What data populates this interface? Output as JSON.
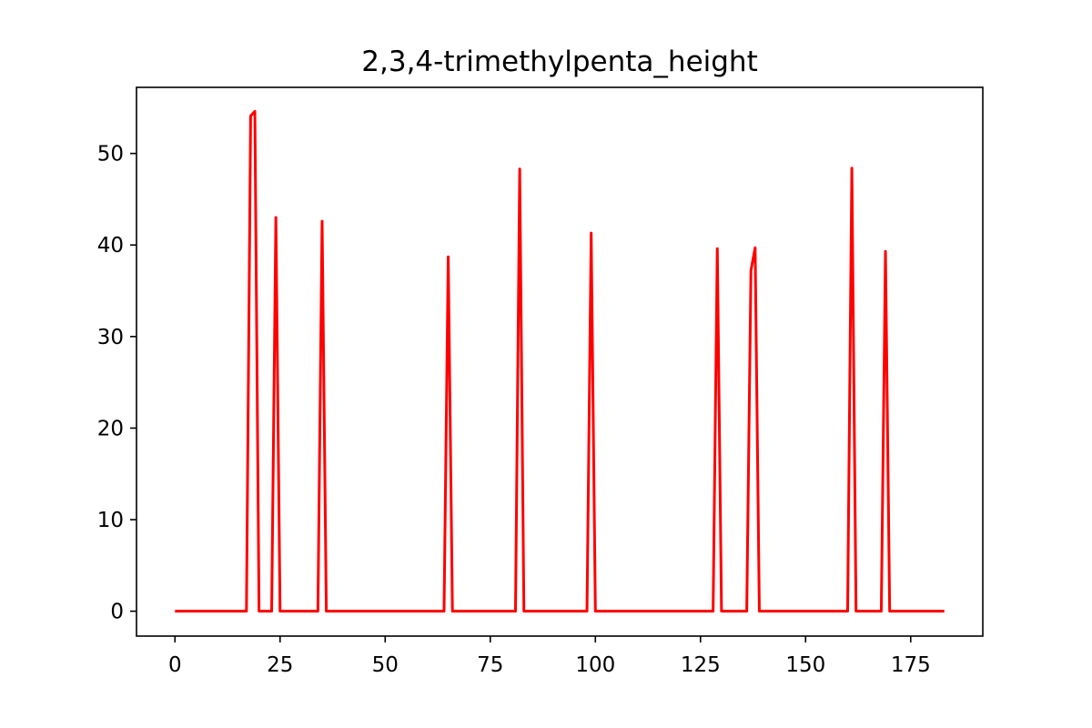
{
  "chart_data": {
    "type": "line",
    "title": "2,3,4-trimethylpenta_height",
    "xlabel": "",
    "ylabel": "",
    "xlim": [
      -9.15,
      192.15
    ],
    "ylim": [
      -2.72,
      57.22
    ],
    "x_ticks": [
      0,
      25,
      50,
      75,
      100,
      125,
      150,
      175
    ],
    "x_tick_labels": [
      "0",
      "25",
      "50",
      "75",
      "100",
      "125",
      "150",
      "175"
    ],
    "y_ticks": [
      0,
      10,
      20,
      30,
      40,
      50
    ],
    "y_tick_labels": [
      "0",
      "10",
      "20",
      "30",
      "40",
      "50"
    ],
    "grid": false,
    "legend": "none",
    "colors": {
      "line": "#ff0000",
      "axes": "#000000",
      "background": "#ffffff"
    },
    "series": [
      {
        "x": [
          0,
          17,
          18,
          19,
          20,
          23,
          24,
          25,
          34,
          35,
          36,
          64,
          65,
          66,
          81,
          82,
          83,
          98,
          99,
          100,
          128,
          129,
          130,
          136,
          137,
          138,
          139,
          160,
          161,
          162,
          168,
          169,
          170,
          183
        ],
        "y": [
          0,
          0,
          54.1,
          54.6,
          0,
          0,
          43.0,
          0,
          0,
          42.6,
          0,
          0,
          38.7,
          0,
          0,
          48.3,
          0,
          0,
          41.3,
          0,
          0,
          39.6,
          0,
          0,
          37.2,
          39.7,
          0,
          0,
          48.4,
          0,
          0,
          39.3,
          0,
          0
        ]
      }
    ]
  }
}
